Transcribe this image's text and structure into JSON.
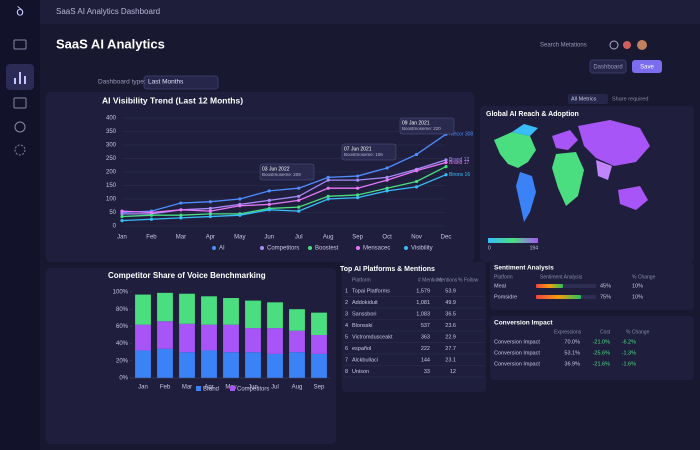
{
  "app": {
    "window_title": "SaaS AI Analytics Dashboard",
    "page_title": "SaaS AI Analytics",
    "search_placeholder": "Search Metations",
    "filter_label": "Dashboard type:",
    "filter_value": "Last Months",
    "buttons": [
      "Dashboard",
      "Save"
    ],
    "metrics_select": "All Metrics",
    "share_label": "Share required"
  },
  "line_chart": {
    "type": "line",
    "title": "AI Visibility Trend (Last 12 Months)",
    "categories": [
      "Jan",
      "Feb",
      "Mar",
      "Apr",
      "May",
      "Jun",
      "Jul",
      "Aug",
      "Sep",
      "Oct",
      "Nov",
      "Dec"
    ],
    "series": [
      {
        "name": "AI",
        "color": "#4f8cff",
        "values": [
          50,
          55,
          85,
          90,
          100,
          130,
          140,
          180,
          185,
          215,
          265,
          340
        ]
      },
      {
        "name": "Competitors",
        "color": "#a78bfa",
        "values": [
          45,
          45,
          60,
          65,
          80,
          95,
          110,
          170,
          170,
          180,
          210,
          245
        ]
      },
      {
        "name": "Boostest",
        "color": "#4ade80",
        "values": [
          35,
          40,
          40,
          45,
          45,
          65,
          70,
          110,
          115,
          140,
          165,
          220
        ]
      },
      {
        "name": "Mensacec",
        "color": "#e879f9",
        "values": [
          55,
          50,
          60,
          55,
          75,
          80,
          95,
          140,
          140,
          170,
          205,
          235
        ]
      },
      {
        "name": "Visibility",
        "color": "#38bdf8",
        "values": [
          20,
          25,
          30,
          35,
          40,
          60,
          55,
          100,
          105,
          130,
          145,
          190
        ]
      }
    ],
    "ylim": [
      0,
      400
    ],
    "yticks": [
      0,
      50,
      100,
      150,
      200,
      250,
      300,
      350,
      400
    ],
    "grid": true,
    "end_labels": [
      "Nelcor 308",
      "Brand 17",
      "Brand 12",
      "Birons 16"
    ],
    "annotations": [
      {
        "date": "03 Jun 2022",
        "text": "Boostmoseme: 209"
      },
      {
        "date": "07 Jun 2021",
        "text": "Boostmoseme: 106"
      },
      {
        "date": "09 Jan 2021",
        "text": "Boostmoseme: 220"
      }
    ]
  },
  "map": {
    "title": "Global AI Reach & Adoption",
    "legend_min": "0",
    "legend_max": "194"
  },
  "bar_chart": {
    "type": "bar",
    "title": "Competitor Share of Voice Benchmarking",
    "categories": [
      "Jan",
      "Feb",
      "Mar",
      "Apr",
      "May",
      "Jun",
      "Jul",
      "Aug",
      "Sep"
    ],
    "stacked": true,
    "series": [
      {
        "name": "Brand",
        "color": "#3b82f6",
        "values": [
          32,
          34,
          30,
          32,
          30,
          30,
          28,
          30,
          28
        ]
      },
      {
        "name": "Competitors",
        "color": "#a855f7",
        "values": [
          30,
          32,
          33,
          30,
          32,
          28,
          30,
          25,
          22
        ]
      },
      {
        "color": "#4ade80",
        "values": [
          35,
          33,
          35,
          33,
          31,
          32,
          30,
          25,
          26
        ]
      }
    ],
    "ylim": [
      0,
      100
    ],
    "yticks": [
      {
        "value": 0,
        "label": "0%"
      },
      {
        "value": 20,
        "label": "20%"
      },
      {
        "value": 40,
        "label": "40%"
      },
      {
        "value": 60,
        "label": "60%"
      },
      {
        "value": 80,
        "label": "80%"
      },
      {
        "value": 100,
        "label": "100%"
      }
    ]
  },
  "platforms_table": {
    "title": "Top AI Platforms & Mentions",
    "columns": [
      "Platform",
      "# Mentions",
      "Mentions",
      "% Follow"
    ],
    "rows": [
      [
        "1",
        "Topai Platforms",
        "1,579",
        "53.9"
      ],
      [
        "2",
        "Addokiduit",
        "1,081",
        "49.9"
      ],
      [
        "3",
        "Sanssbori",
        "1,083",
        "36.5"
      ],
      [
        "4",
        "Blonsski",
        "537",
        "23.6"
      ],
      [
        "5",
        "Victromdusceakt",
        "363",
        "22.9"
      ],
      [
        "6",
        "español",
        "222",
        "27.7"
      ],
      [
        "7",
        "Alckbullaci",
        "144",
        "23.1"
      ],
      [
        "8",
        "Unison",
        "33",
        "12"
      ]
    ]
  },
  "sentiment": {
    "title": "Sentiment Analysis",
    "columns": [
      "Platform",
      "Sentiment Analysis",
      "% Change"
    ],
    "rows": [
      {
        "platform": "Meal",
        "score": {
          "value": 45,
          "label": "45%"
        },
        "change": "10%"
      },
      {
        "platform": "Pomsidre",
        "score": {
          "value": 75,
          "label": "75%"
        },
        "change": "10%"
      }
    ]
  },
  "conversion": {
    "title": "Conversion Impact",
    "columns": [
      "Expressions",
      "Cost",
      "% Change"
    ],
    "rows": [
      [
        "Conversion Impact",
        "70.0%",
        "-21.0%",
        "-6.2%"
      ],
      [
        "Conversion Impact",
        "53.1%",
        "-25.6%",
        "-1.3%"
      ],
      [
        "Conversion Impact",
        "36.9%",
        "-21.6%",
        "-1.6%"
      ]
    ]
  }
}
